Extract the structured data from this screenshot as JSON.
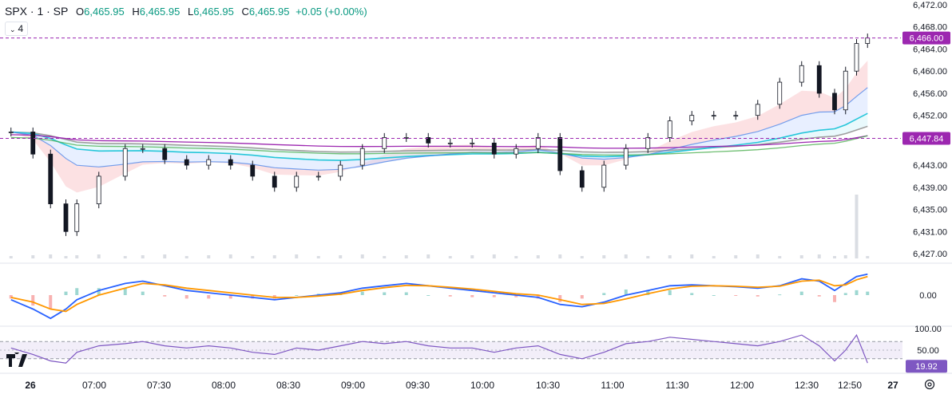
{
  "header": {
    "symbol": "SPX · 1 · SP",
    "open_label": "O",
    "open": "6,465.95",
    "high_label": "H",
    "high": "6,465.95",
    "low_label": "L",
    "low": "6,465.95",
    "close_label": "C",
    "close": "6,465.95",
    "change": "+0.05 (+0.00%)",
    "indicators_count": "4"
  },
  "colors": {
    "up": "#089981",
    "down": "#f23645",
    "ema_fast": "#e91e63",
    "ema_slow_cyan": "#26c6da",
    "sma_gray": "#9e9e9e",
    "blue_cloud": "#3f7de8",
    "green_ma": "#4caf50",
    "purple_ma": "#9c27b0",
    "macd_line": "#2962ff",
    "signal_line": "#ff9800",
    "rsi_line": "#7e57c2",
    "price_tag": "#9c27b0"
  },
  "chart_data": [
    {
      "type": "line",
      "name": "price",
      "y_axis_ticks": [
        "6,472.00",
        "6,468.00",
        "6,464.00",
        "6,460.00",
        "6,456.00",
        "6,452.00",
        "6,447.84",
        "6,443.00",
        "6,439.00",
        "6,435.00",
        "6,431.00",
        "6,427.00"
      ],
      "ylim": [
        6427,
        6472
      ],
      "x_ticks": [
        "26",
        "07:00",
        "07:30",
        "08:00",
        "08:30",
        "09:00",
        "09:30",
        "10:00",
        "10:30",
        "11:00",
        "11:30",
        "12:00",
        "12:30",
        "12:50",
        "27"
      ],
      "x": [
        "06:30",
        "06:40",
        "06:48",
        "06:55",
        "07:00",
        "07:10",
        "07:22",
        "07:30",
        "07:40",
        "07:50",
        "08:00",
        "08:10",
        "08:20",
        "08:30",
        "08:40",
        "08:50",
        "09:00",
        "09:10",
        "09:20",
        "09:30",
        "09:40",
        "09:50",
        "10:00",
        "10:10",
        "10:20",
        "10:30",
        "10:40",
        "10:50",
        "11:00",
        "11:10",
        "11:20",
        "11:30",
        "11:40",
        "11:50",
        "12:00",
        "12:10",
        "12:20",
        "12:30",
        "12:38",
        "12:45",
        "12:50",
        "12:55",
        "13:00"
      ],
      "close": [
        6449,
        6445,
        6436,
        6431,
        6436,
        6441,
        6446,
        6446,
        6444,
        6443,
        6444,
        6443,
        6441,
        6439,
        6441,
        6441,
        6443,
        6446,
        6448,
        6448,
        6447,
        6447,
        6447,
        6445,
        6446,
        6448,
        6442,
        6439,
        6443,
        6446,
        6448,
        6451,
        6452,
        6452,
        6452,
        6454,
        6458,
        6461,
        6456,
        6453,
        6460,
        6465,
        6466
      ],
      "current_price": "6,466.00",
      "level_price": "6,447.84",
      "volume_spike_label": "",
      "grid": false
    },
    {
      "type": "line",
      "name": "macd",
      "y_axis_ticks": [
        "0.00"
      ],
      "ylim": [
        -6,
        6
      ],
      "x": [
        "06:30",
        "06:40",
        "06:48",
        "06:55",
        "07:00",
        "07:10",
        "07:22",
        "07:30",
        "07:40",
        "07:50",
        "08:00",
        "08:10",
        "08:20",
        "08:30",
        "08:40",
        "08:50",
        "09:00",
        "09:10",
        "09:20",
        "09:30",
        "09:40",
        "09:50",
        "10:00",
        "10:10",
        "10:20",
        "10:30",
        "10:40",
        "10:50",
        "11:00",
        "11:10",
        "11:20",
        "11:30",
        "11:40",
        "11:50",
        "12:00",
        "12:10",
        "12:20",
        "12:30",
        "12:38",
        "12:45",
        "12:50",
        "12:55",
        "13:00"
      ],
      "macd": [
        -1,
        -3,
        -5,
        -3,
        -1,
        1,
        2.5,
        3,
        2,
        1,
        0.5,
        0,
        -0.5,
        -1,
        -0.5,
        0,
        0.5,
        1.5,
        2,
        2.5,
        2,
        1.5,
        1,
        0.5,
        0,
        -0.5,
        -2,
        -2.5,
        -1.5,
        0,
        1,
        2,
        2.2,
        2,
        1.8,
        1.5,
        2,
        3.5,
        3,
        1,
        2.5,
        4,
        4.5
      ],
      "signal": [
        -0.5,
        -1.5,
        -3,
        -3.5,
        -2,
        0,
        1.5,
        2.5,
        2.2,
        1.5,
        1,
        0.5,
        0,
        -0.5,
        -0.5,
        -0.2,
        0.2,
        1,
        1.6,
        2.1,
        2,
        1.7,
        1.3,
        0.8,
        0.3,
        0,
        -1,
        -2,
        -1.8,
        -0.8,
        0.3,
        1.3,
        1.9,
        2,
        1.9,
        1.7,
        1.9,
        3,
        3.2,
        2,
        2.2,
        3.3,
        4
      ],
      "grid": false
    },
    {
      "type": "line",
      "name": "rsi",
      "y_axis_ticks": [
        "100.00",
        "50.00"
      ],
      "ylim": [
        0,
        100
      ],
      "current_value": "19.92",
      "x": [
        "06:30",
        "06:40",
        "06:48",
        "06:55",
        "07:00",
        "07:10",
        "07:22",
        "07:30",
        "07:40",
        "07:50",
        "08:00",
        "08:10",
        "08:20",
        "08:30",
        "08:40",
        "08:50",
        "09:00",
        "09:10",
        "09:20",
        "09:30",
        "09:40",
        "09:50",
        "10:00",
        "10:10",
        "10:20",
        "10:30",
        "10:40",
        "10:50",
        "11:00",
        "11:10",
        "11:20",
        "11:30",
        "11:40",
        "11:50",
        "12:00",
        "12:10",
        "12:20",
        "12:30",
        "12:38",
        "12:45",
        "12:50",
        "12:55",
        "13:00"
      ],
      "values": [
        55,
        40,
        25,
        20,
        45,
        60,
        65,
        70,
        60,
        55,
        60,
        55,
        45,
        40,
        55,
        50,
        60,
        70,
        65,
        70,
        60,
        55,
        55,
        45,
        55,
        60,
        40,
        30,
        45,
        65,
        70,
        80,
        75,
        70,
        65,
        60,
        70,
        85,
        60,
        25,
        50,
        85,
        20
      ],
      "band_upper": 70,
      "band_lower": 30,
      "grid": false
    }
  ]
}
